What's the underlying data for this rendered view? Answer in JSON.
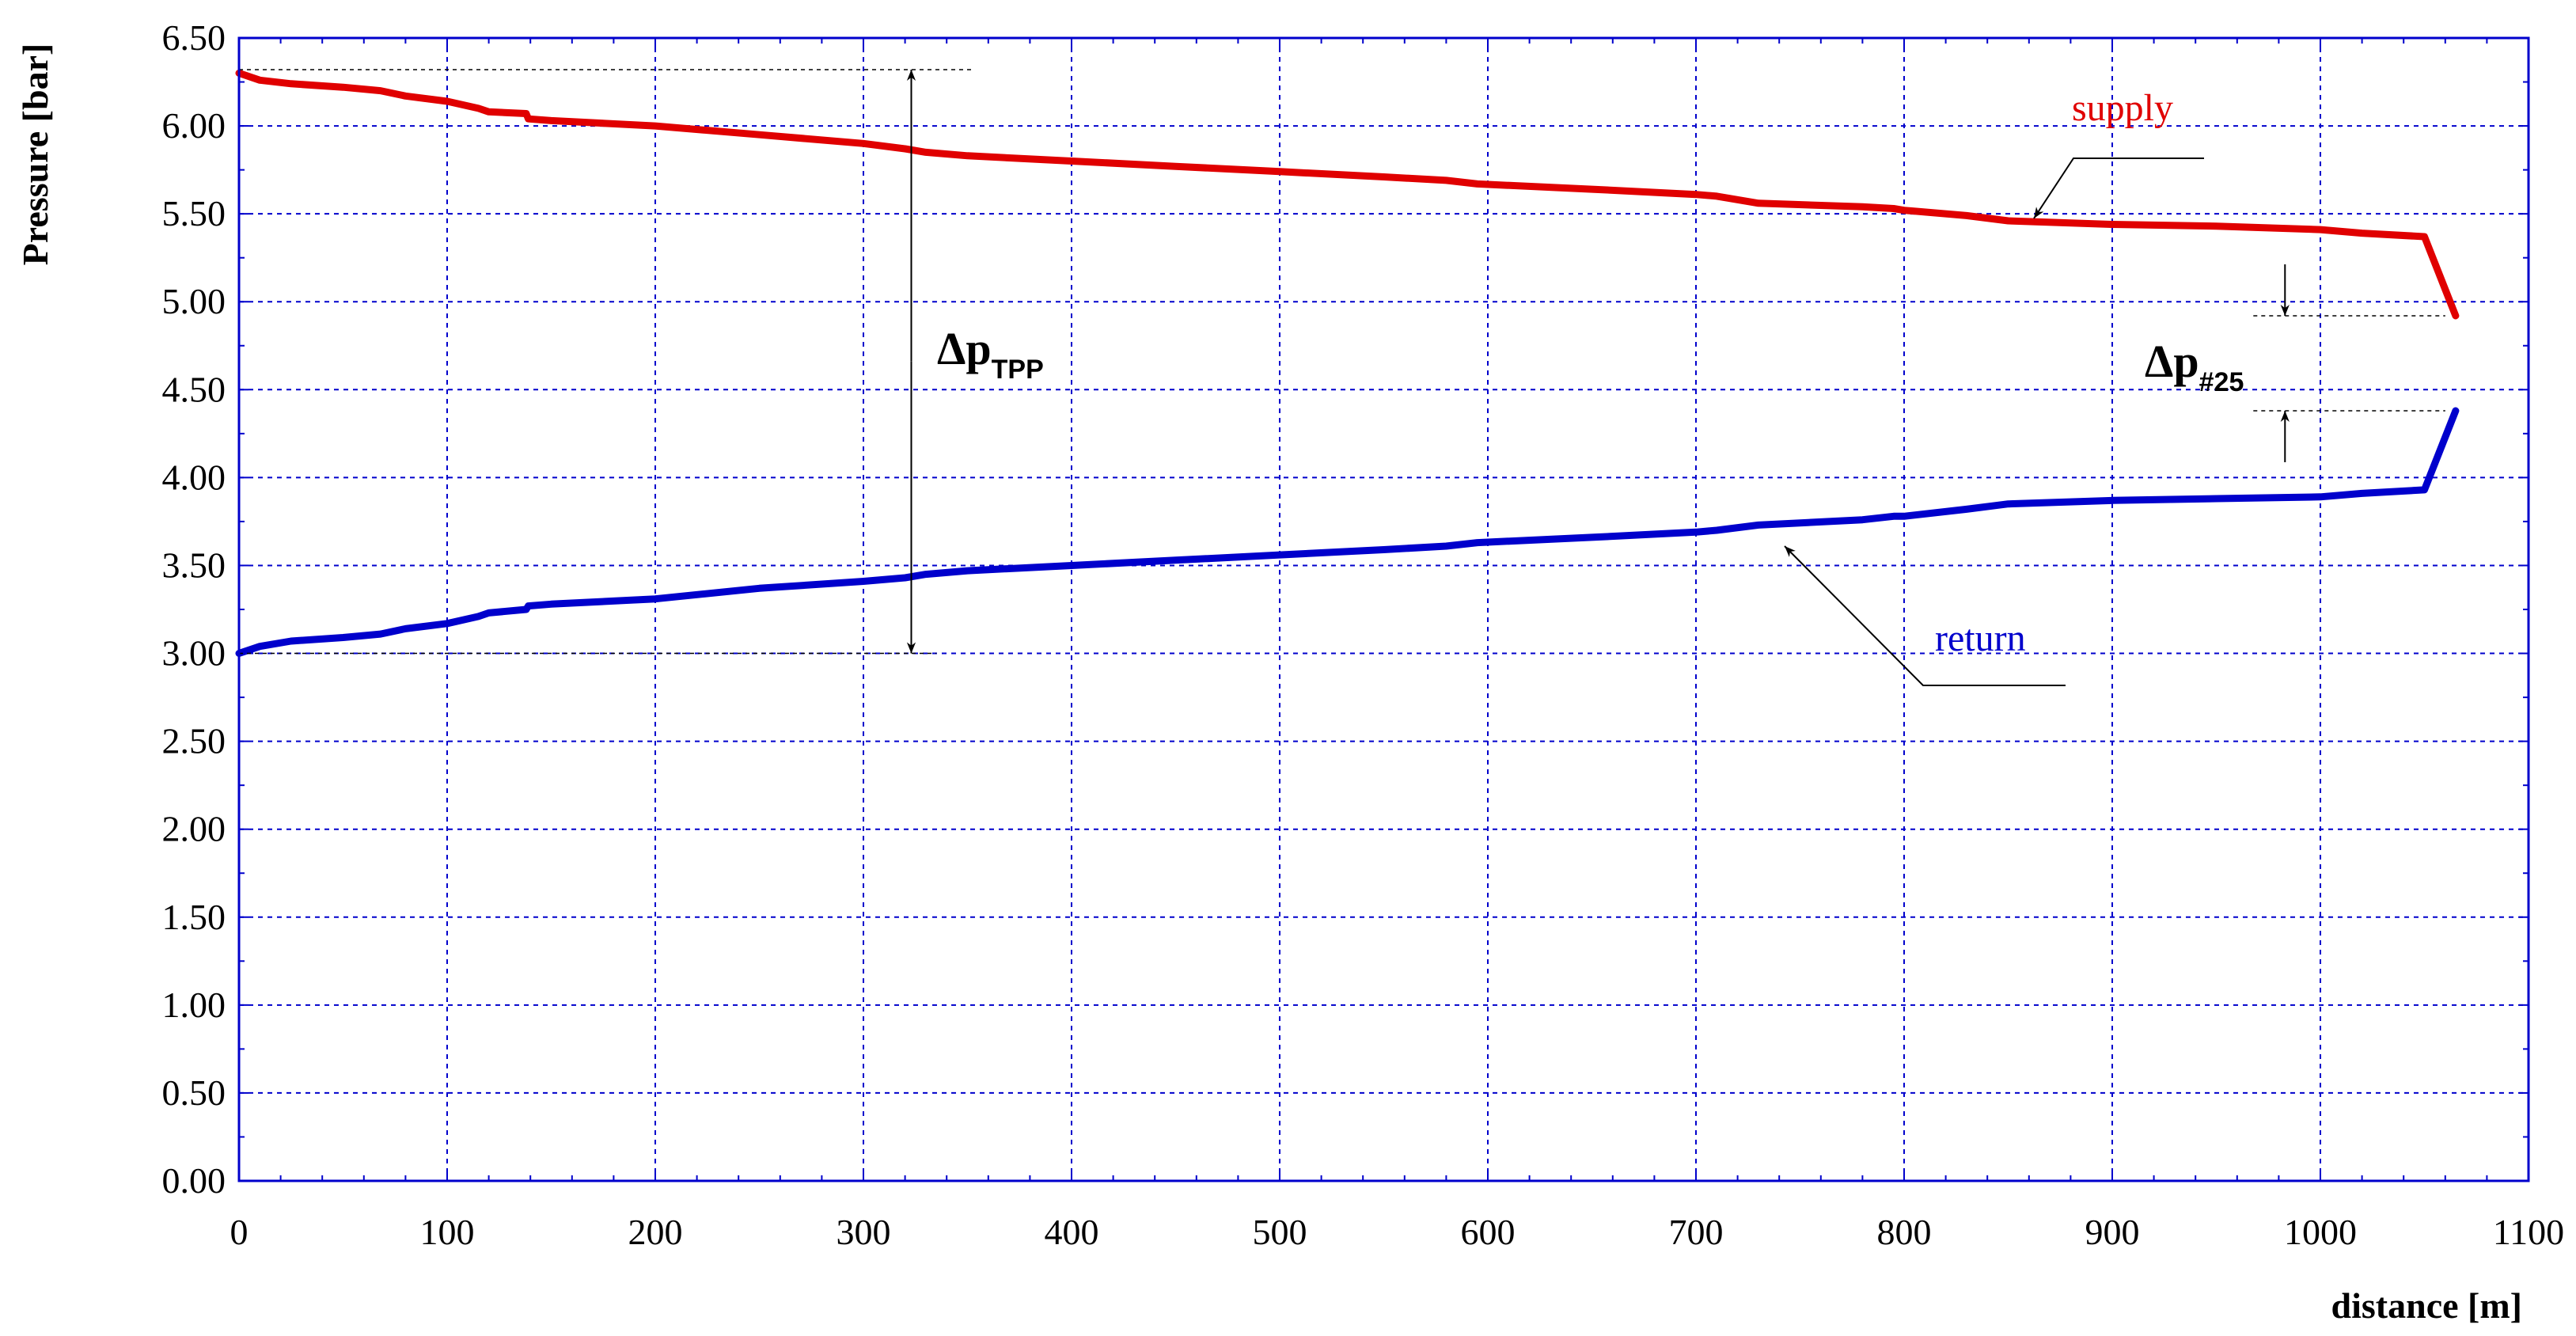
{
  "chart_data": {
    "type": "line",
    "xlabel": "distance [m]",
    "ylabel": "Pressure [bar]",
    "xlim": [
      0,
      1100
    ],
    "ylim": [
      0,
      6.5
    ],
    "xticks": [
      "0",
      "100",
      "200",
      "300",
      "400",
      "500",
      "600",
      "700",
      "800",
      "900",
      "1000",
      "1100"
    ],
    "yticks": [
      "0.00",
      "0.50",
      "1.00",
      "1.50",
      "2.00",
      "2.50",
      "3.00",
      "3.50",
      "4.00",
      "4.50",
      "5.00",
      "5.50",
      "6.00",
      "6.50"
    ],
    "grid": true,
    "series": [
      {
        "name": "supply",
        "color": "#e00000",
        "x": [
          0,
          10,
          25,
          50,
          68,
          80,
          100,
          115,
          120,
          138,
          139,
          150,
          200,
          250,
          300,
          320,
          330,
          350,
          400,
          450,
          500,
          550,
          580,
          595,
          650,
          700,
          710,
          730,
          780,
          795,
          800,
          830,
          850,
          900,
          950,
          1000,
          1020,
          1050,
          1065
        ],
        "y": [
          6.3,
          6.26,
          6.24,
          6.22,
          6.2,
          6.17,
          6.14,
          6.1,
          6.08,
          6.07,
          6.04,
          6.03,
          6.0,
          5.95,
          5.9,
          5.87,
          5.85,
          5.83,
          5.8,
          5.77,
          5.74,
          5.71,
          5.69,
          5.67,
          5.64,
          5.61,
          5.6,
          5.56,
          5.54,
          5.53,
          5.52,
          5.49,
          5.46,
          5.44,
          5.43,
          5.41,
          5.39,
          5.37,
          4.92
        ]
      },
      {
        "name": "return",
        "color": "#0000cc",
        "x": [
          0,
          10,
          25,
          50,
          68,
          80,
          100,
          115,
          120,
          138,
          139,
          150,
          200,
          250,
          300,
          320,
          330,
          350,
          400,
          450,
          500,
          550,
          580,
          595,
          650,
          700,
          710,
          730,
          780,
          795,
          800,
          830,
          850,
          900,
          950,
          1000,
          1020,
          1050,
          1065
        ],
        "y": [
          3.0,
          3.04,
          3.07,
          3.09,
          3.11,
          3.14,
          3.17,
          3.21,
          3.23,
          3.25,
          3.27,
          3.28,
          3.31,
          3.37,
          3.41,
          3.43,
          3.45,
          3.47,
          3.5,
          3.53,
          3.56,
          3.59,
          3.61,
          3.63,
          3.66,
          3.69,
          3.7,
          3.73,
          3.76,
          3.78,
          3.78,
          3.82,
          3.85,
          3.87,
          3.88,
          3.89,
          3.91,
          3.93,
          4.38
        ]
      }
    ],
    "annotations": {
      "supply_label": "supply",
      "return_label": "return",
      "dp_tpp": {
        "symbol": "Δp",
        "subscript": "TPP",
        "x": 323,
        "y_from": 3.0,
        "y_to": 6.32
      },
      "dp_25": {
        "symbol": "Δp",
        "subscript": "#25",
        "x": 983,
        "y_from": 4.38,
        "y_to": 4.92
      }
    }
  }
}
